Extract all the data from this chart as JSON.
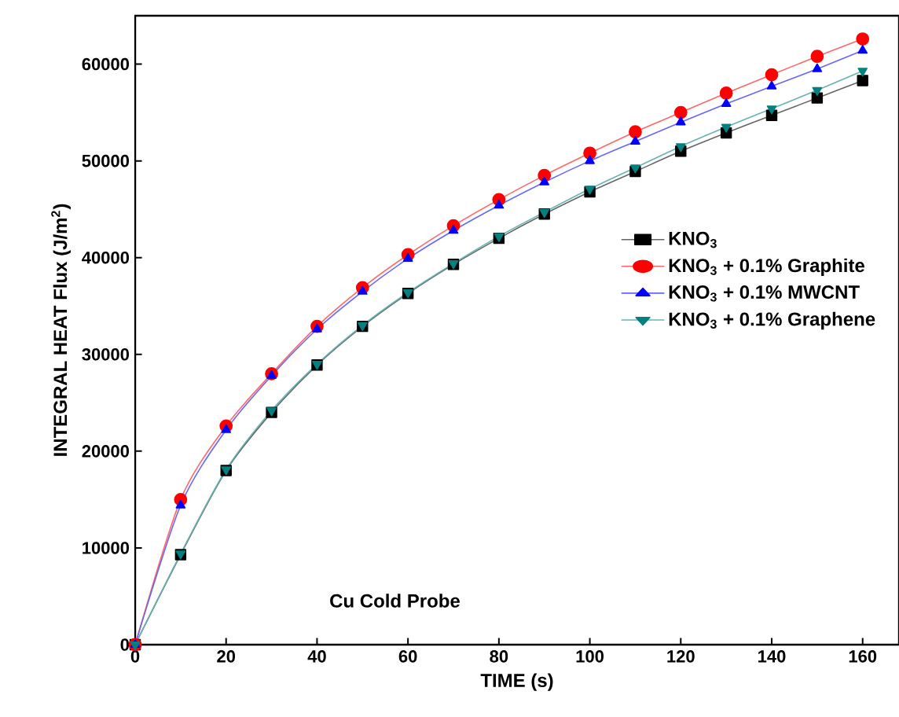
{
  "chart_data": {
    "type": "line",
    "xlabel": "TIME (s)",
    "ylabel": "INTEGRAL HEAT Flux (J/m$^{2}$)",
    "x": [
      0,
      10,
      20,
      30,
      40,
      50,
      60,
      70,
      80,
      90,
      100,
      110,
      120,
      130,
      140,
      150,
      160
    ],
    "series": [
      {
        "name": "KNO$_{3}$",
        "color": "#000000",
        "marker": "square",
        "values": [
          0,
          9300,
          18000,
          24000,
          28900,
          32900,
          36300,
          39300,
          42000,
          44500,
          46800,
          48900,
          51000,
          52900,
          54700,
          56500,
          58300
        ]
      },
      {
        "name": "KNO$_{3}$ + 0.1% Graphite",
        "color": "#ff0000",
        "marker": "circle",
        "values": [
          0,
          15000,
          22600,
          28000,
          32900,
          36900,
          40300,
          43300,
          46000,
          48500,
          50800,
          53000,
          55000,
          57000,
          58900,
          60800,
          62600
        ]
      },
      {
        "name": "KNO$_{3}$ + 0.1% MWCNT",
        "color": "#0000ff",
        "marker": "triangle",
        "values": [
          0,
          14400,
          22200,
          27800,
          32600,
          36500,
          39900,
          42800,
          45400,
          47800,
          50000,
          52000,
          54000,
          55900,
          57700,
          59500,
          61400
        ]
      },
      {
        "name": "KNO$_{3}$ + 0.1% Graphene",
        "color": "#008080",
        "marker": "triangle-down",
        "values": [
          0,
          9400,
          18100,
          24200,
          29000,
          33000,
          36400,
          39400,
          42200,
          44700,
          47100,
          49300,
          51500,
          53500,
          55400,
          57300,
          59300
        ]
      }
    ],
    "annotations": [
      "Cu Cold Probe"
    ],
    "xlim": [
      0,
      168
    ],
    "ylim": [
      0,
      65000
    ],
    "xticks": [
      0,
      20,
      40,
      60,
      80,
      100,
      120,
      140,
      160
    ],
    "yticks": [
      0,
      10000,
      20000,
      30000,
      40000,
      50000,
      60000
    ],
    "grid": false,
    "legend": "center right",
    "line_style": "solid"
  }
}
